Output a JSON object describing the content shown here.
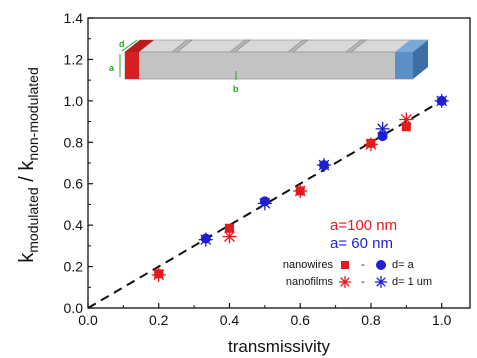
{
  "chart_data": {
    "type": "scatter",
    "title": "",
    "xlabel": "transmissivity",
    "ylabel_main": "k",
    "ylabel_sub1": "modulated",
    "ylabel_sep": " / ",
    "ylabel_sub2": "non-modulated",
    "xlim": [
      0.0,
      1.08
    ],
    "ylim": [
      0.0,
      1.4
    ],
    "x_ticks": [
      0.0,
      0.2,
      0.4,
      0.6,
      0.8,
      1.0
    ],
    "x_tick_labels": [
      "0.0",
      "0.2",
      "0.4",
      "0.6",
      "0.8",
      "1.0"
    ],
    "y_ticks": [
      0.0,
      0.2,
      0.4,
      0.6,
      0.8,
      1.0,
      1.2,
      1.4
    ],
    "y_tick_labels": [
      "0.0",
      "0.2",
      "0.4",
      "0.6",
      "0.8",
      "1.0",
      "1.2",
      "1.4"
    ],
    "grid": false,
    "reference_line": {
      "x": [
        0.0,
        1.0
      ],
      "y": [
        0.0,
        1.0
      ],
      "style": "dashed",
      "color": "#111111"
    },
    "series": [
      {
        "marker": "square",
        "color": "#e41a1c",
        "points": [
          [
            0.2,
            0.165
          ],
          [
            0.4,
            0.385
          ],
          [
            0.6,
            0.565
          ],
          [
            0.8,
            0.795
          ],
          [
            0.9,
            0.875
          ]
        ]
      },
      {
        "marker": "star",
        "color": "#e41a1c",
        "points": [
          [
            0.2,
            0.16
          ],
          [
            0.4,
            0.345
          ],
          [
            0.6,
            0.565
          ],
          [
            0.8,
            0.79
          ],
          [
            0.9,
            0.91
          ]
        ]
      },
      {
        "marker": "circle",
        "color": "#1f1fd6",
        "points": [
          [
            0.333,
            0.335
          ],
          [
            0.5,
            0.515
          ],
          [
            0.667,
            0.69
          ],
          [
            0.833,
            0.83
          ],
          [
            1.0,
            1.0
          ]
        ]
      },
      {
        "marker": "star",
        "color": "#1f1fd6",
        "points": [
          [
            0.333,
            0.33
          ],
          [
            0.5,
            0.505
          ],
          [
            0.667,
            0.69
          ],
          [
            0.833,
            0.865
          ],
          [
            1.0,
            1.0
          ]
        ]
      }
    ],
    "annotations": {
      "a_red": "a=100 nm",
      "a_blue": "a= 60 nm",
      "red_color": "#e41a1c",
      "blue_color": "#1f1fd6"
    },
    "legend": {
      "placement": "bottom-right",
      "rows": [
        {
          "label": "nanowires",
          "dash": "-",
          "text": "d= a",
          "red_marker": "square",
          "blue_marker": "circle"
        },
        {
          "label": "nanofilms",
          "dash": "-",
          "text": "d= 1 um",
          "red_marker": "star",
          "blue_marker": "star"
        }
      ]
    },
    "inset": {
      "label_d": "d",
      "label_a": "a",
      "label_b": "b",
      "label_color": "#22aa22",
      "bar_color": "#c9c9c9",
      "left_end_color": "#d42020",
      "right_end_color": "#5a8fc8"
    }
  }
}
